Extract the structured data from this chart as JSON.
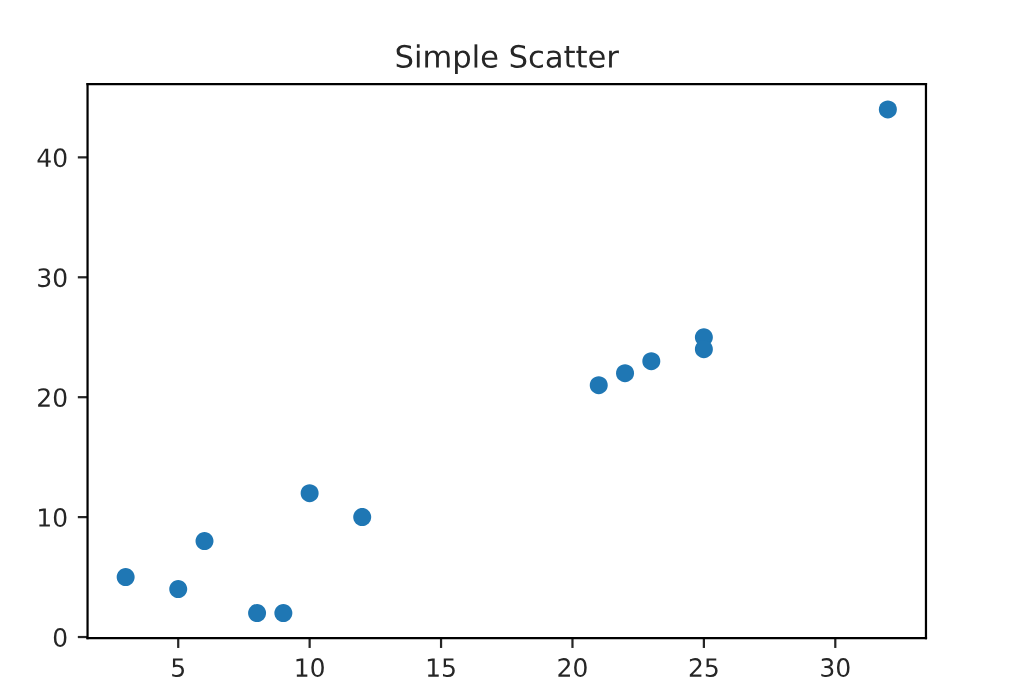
{
  "chart_data": {
    "type": "scatter",
    "title": "Simple Scatter",
    "x": [
      3,
      5,
      6,
      8,
      9,
      10,
      12,
      21,
      22,
      23,
      25,
      25,
      32
    ],
    "series": [
      {
        "color": "#1f77b4",
        "values": [
          5,
          4,
          8,
          2,
          2,
          12,
          10,
          21,
          22,
          23,
          25,
          24,
          44
        ]
      }
    ],
    "xlim": [
      1.55,
      33.45
    ],
    "ylim": [
      -0.1,
      46.1
    ],
    "xticks": [
      5,
      10,
      15,
      20,
      25,
      30
    ],
    "yticks": [
      0,
      10,
      20,
      30,
      40
    ],
    "marker": "circle",
    "grid": false,
    "legend": false
  }
}
